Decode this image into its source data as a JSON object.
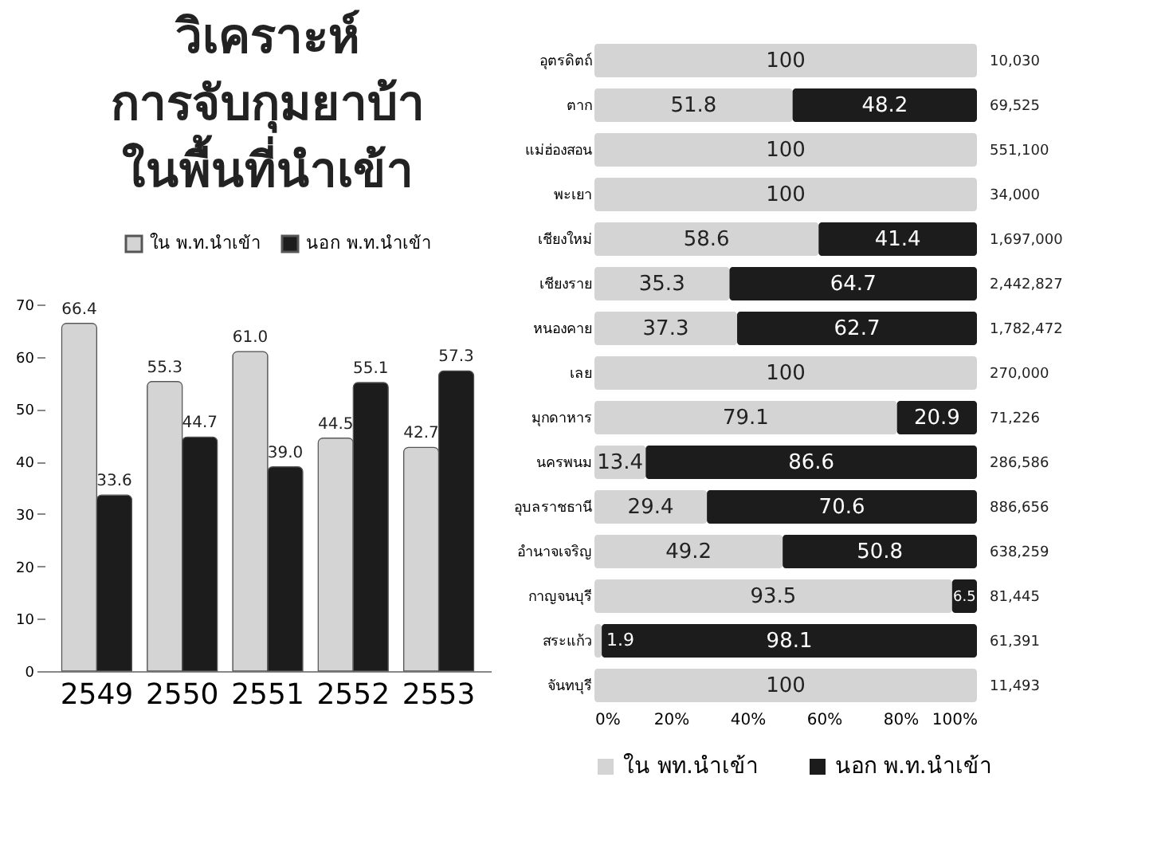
{
  "chart_data": [
    {
      "type": "bar",
      "title": "วิเคราะห์ การจับกุมยาบ้า ในพื้นที่นำเข้า",
      "categories": [
        "2549",
        "2550",
        "2551",
        "2552",
        "2553"
      ],
      "series": [
        {
          "name": "ใน พ.ท.นำเข้า",
          "color": "#d4d4d4",
          "values": [
            66.4,
            55.3,
            61.0,
            44.5,
            42.7
          ],
          "value_labels": [
            "66.4",
            "55.3",
            "61.0",
            "44.5",
            "42.7"
          ]
        },
        {
          "name": "นอก พ.ท.นำเข้า",
          "color": "#1c1c1c",
          "values": [
            33.6,
            44.7,
            39.0,
            55.1,
            57.3
          ],
          "value_labels": [
            "33.6",
            "44.7",
            "39.0",
            "55.1",
            "57.3"
          ]
        }
      ],
      "ylim": [
        0,
        70
      ],
      "yticks": [
        0,
        10,
        20,
        30,
        40,
        50,
        60,
        70
      ],
      "grid": false,
      "legend": "top right"
    },
    {
      "type": "bar",
      "orientation": "horizontal",
      "stacked": true,
      "categories": [
        "อุตรดิตถ์",
        "ตาก",
        "แม่ฮ่องสอน",
        "พะเยา",
        "เชียงใหม่",
        "เชียงราย",
        "หนองคาย",
        "เลย",
        "มุกดาหาร",
        "นครพนม",
        "อุบลราชธานี",
        "อำนาจเจริญ",
        "กาญจนบุรี",
        "สระแก้ว",
        "จันทบุรี"
      ],
      "series": [
        {
          "name": "ใน พท.นำเข้า",
          "color": "#d4d4d4",
          "values": [
            100,
            51.8,
            100,
            100,
            58.6,
            35.3,
            37.3,
            100,
            79.1,
            13.4,
            29.4,
            49.2,
            93.5,
            1.9,
            100
          ],
          "value_labels": [
            "100",
            "51.8",
            "100",
            "100",
            "58.6",
            "35.3",
            "37.3",
            "100",
            "79.1",
            "13.4",
            "29.4",
            "49.2",
            "93.5",
            "1.9",
            "100"
          ]
        },
        {
          "name": "นอก พ.ท.นำเข้า",
          "color": "#1c1c1c",
          "values": [
            0,
            48.2,
            0,
            0,
            41.4,
            64.7,
            62.7,
            0,
            20.9,
            86.6,
            70.6,
            50.8,
            6.5,
            98.1,
            0
          ],
          "value_labels": [
            null,
            "48.2",
            null,
            null,
            "41.4",
            "64.7",
            "62.7",
            null,
            "20.9",
            "86.6",
            "70.6",
            "50.8",
            "6.5",
            "98.1",
            null
          ]
        }
      ],
      "xlim": [
        0,
        100
      ],
      "xticks": [
        {
          "value": 0,
          "label": "0%"
        },
        {
          "value": 20,
          "label": "20%"
        },
        {
          "value": 40,
          "label": "40%"
        },
        {
          "value": 60,
          "label": "60%"
        },
        {
          "value": 80,
          "label": "80%"
        },
        {
          "value": 100,
          "label": "100%"
        }
      ],
      "grid": false,
      "legend": "bottom",
      "annotations": [
        "10,030",
        "69,525",
        "551,100",
        "34,000",
        "1,697,000",
        "2,442,827",
        "1,782,472",
        "270,000",
        "71,226",
        "286,586",
        "886,656",
        "638,259",
        "81,445",
        "61,391",
        "11,493"
      ]
    }
  ]
}
